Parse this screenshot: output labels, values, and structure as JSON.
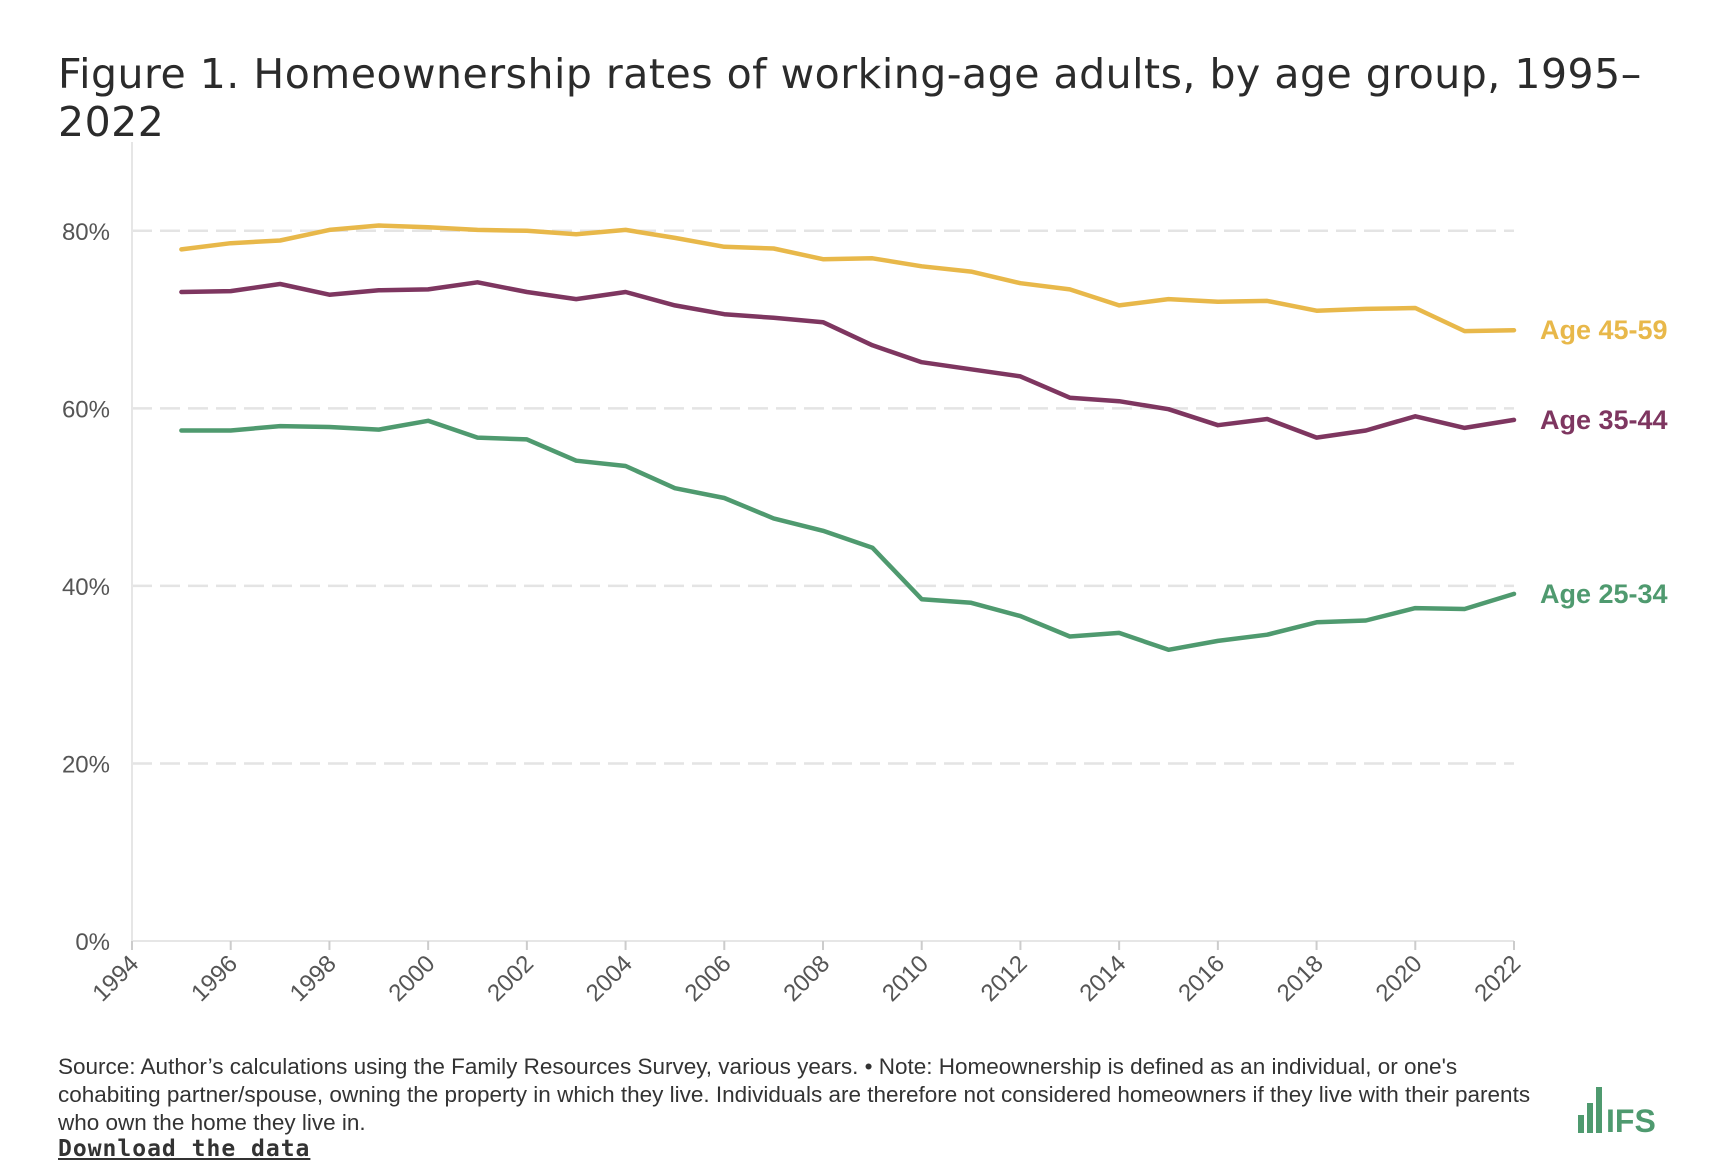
{
  "title": "Figure 1. Homeownership rates of working-age adults, by age group, 1995–2022",
  "footer": {
    "source": "Source: Author’s calculations using the Family Resources Survey, various years. • Note: Homeownership is defined as an individual, or one's cohabiting partner/spouse, owning the property in which they live. Individuals are therefore not considered homeowners if they live with their parents who own the home they live in.",
    "download_label": "Download the data"
  },
  "logo": {
    "text": "IFS",
    "color": "#4f9a6f"
  },
  "chart_data": {
    "type": "line",
    "title": "Figure 1. Homeownership rates of working-age adults, by age group, 1995–2022",
    "xlabel": "",
    "ylabel": "",
    "xlim": [
      1994,
      2022
    ],
    "ylim": [
      0,
      90
    ],
    "x_ticks": [
      "1994",
      "1996",
      "1998",
      "2000",
      "2002",
      "2004",
      "2006",
      "2008",
      "2010",
      "2012",
      "2014",
      "2016",
      "2018",
      "2020",
      "2022"
    ],
    "y_ticks": [
      "0%",
      "20%",
      "40%",
      "60%",
      "80%"
    ],
    "grid": "horizontal dashed",
    "x": [
      1995,
      1996,
      1997,
      1998,
      1999,
      2000,
      2001,
      2002,
      2003,
      2004,
      2005,
      2006,
      2007,
      2008,
      2009,
      2010,
      2011,
      2012,
      2013,
      2014,
      2015,
      2016,
      2017,
      2018,
      2019,
      2020,
      2021,
      2022
    ],
    "series": [
      {
        "name": "Age 45-59",
        "color": "#e8b84a",
        "values": [
          77.9,
          78.6,
          78.9,
          80.1,
          80.6,
          80.4,
          80.1,
          80.0,
          79.6,
          80.1,
          79.2,
          78.2,
          78.0,
          76.8,
          76.9,
          76.0,
          75.4,
          74.1,
          73.4,
          71.6,
          72.3,
          72.0,
          72.1,
          71.0,
          71.2,
          71.3,
          68.7,
          68.8
        ]
      },
      {
        "name": "Age 35-44",
        "color": "#7e3660",
        "values": [
          73.1,
          73.2,
          74.0,
          72.8,
          73.3,
          73.4,
          74.2,
          73.1,
          72.3,
          73.1,
          71.6,
          70.6,
          70.2,
          69.7,
          67.1,
          65.2,
          64.4,
          63.6,
          61.2,
          60.8,
          59.9,
          58.1,
          58.8,
          56.7,
          57.5,
          59.1,
          57.8,
          58.7
        ]
      },
      {
        "name": "Age 25-34",
        "color": "#4f9a6f",
        "values": [
          57.5,
          57.5,
          58.0,
          57.9,
          57.6,
          58.6,
          56.7,
          56.5,
          54.1,
          53.5,
          51.0,
          49.9,
          47.6,
          46.2,
          44.3,
          38.5,
          38.1,
          36.6,
          34.3,
          34.7,
          32.8,
          33.8,
          34.5,
          35.9,
          36.1,
          37.5,
          37.4,
          39.1
        ]
      }
    ]
  }
}
